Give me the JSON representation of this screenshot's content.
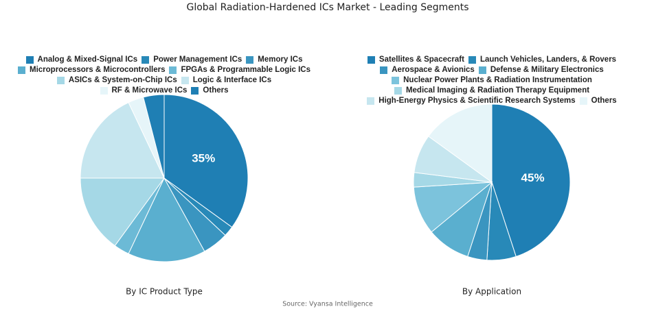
{
  "title": "Global Radiation-Hardened ICs Market - Leading Segments",
  "source": "Source: Vyansa Intelligence",
  "chart_data": [
    {
      "type": "pie",
      "title": "By IC Product Type",
      "categories": [
        "Analog & Mixed-Signal ICs",
        "Power Management ICs",
        "Memory ICs",
        "Microprocessors & Microcontrollers",
        "FPGAs & Programmable Logic ICs",
        "ASICs & System-on-Chip ICs",
        "Logic & Interface ICs",
        "RF & Microwave ICs",
        "Others"
      ],
      "values": [
        35,
        2,
        5,
        15,
        3,
        15,
        18,
        3,
        4
      ],
      "value_labels": [
        "35%",
        null,
        null,
        null,
        null,
        null,
        null,
        null,
        null
      ],
      "colors": [
        "#1f7fb4",
        "#2889b8",
        "#3a95c0",
        "#5aafcf",
        "#6cbad6",
        "#a5d8e6",
        "#c6e6ef",
        "#e6f5f9",
        "#1f7fb4"
      ]
    },
    {
      "type": "pie",
      "title": "By Application",
      "categories": [
        "Satellites & Spacecraft",
        "Launch Vehicles, Landers, & Rovers",
        "Aerospace & Avionics",
        "Defense & Military Electronics",
        "Nuclear Power Plants & Radiation Instrumentation",
        "Medical Imaging & Radiation Therapy Equipment",
        "High-Energy Physics & Scientific Research Systems",
        "Others"
      ],
      "values": [
        45,
        6,
        4,
        9,
        10,
        3,
        8,
        15
      ],
      "value_labels": [
        "45%",
        null,
        null,
        null,
        null,
        null,
        null,
        null
      ],
      "colors": [
        "#1f7fb4",
        "#2889b8",
        "#3a95c0",
        "#5aafcf",
        "#7cc3dc",
        "#a5d8e6",
        "#c6e6ef",
        "#e6f5f9"
      ]
    }
  ]
}
